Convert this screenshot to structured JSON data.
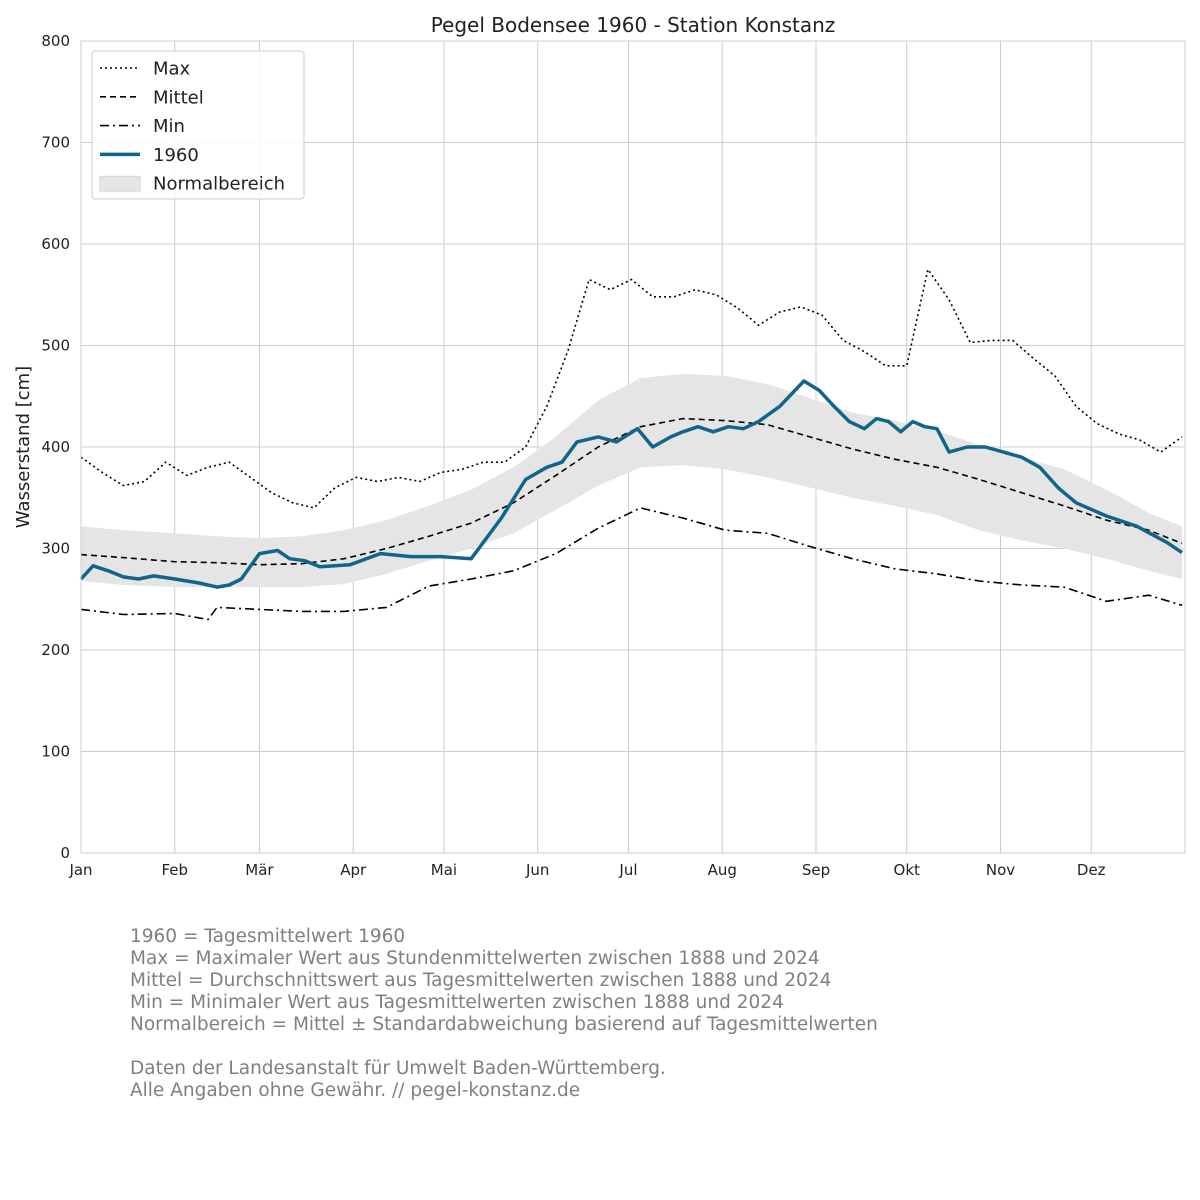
{
  "chart_data": {
    "type": "line",
    "title": "Pegel Bodensee 1960 - Station Konstanz",
    "xlabel": "",
    "ylabel": "Wasserstand [cm]",
    "ylim": [
      0,
      800
    ],
    "yticks": [
      0,
      100,
      200,
      300,
      400,
      500,
      600,
      700,
      800
    ],
    "months": [
      "Jan",
      "Feb",
      "Mär",
      "Apr",
      "Mai",
      "Jun",
      "Jul",
      "Aug",
      "Sep",
      "Okt",
      "Nov",
      "Dez"
    ],
    "grid": true,
    "legend_position": "top-left",
    "legend": [
      "Max",
      "Mittel",
      "Min",
      "1960",
      "Normalbereich"
    ],
    "colors": {
      "series_1960": "#12658a",
      "band": "#e5e5e5",
      "lines": "#000000",
      "grid": "#cccccc"
    },
    "series": [
      {
        "name": "Max",
        "style": "dotted",
        "x": [
          1,
          8,
          15,
          22,
          29,
          36,
          43,
          50,
          57,
          64,
          71,
          78,
          85,
          92,
          99,
          106,
          113,
          120,
          127,
          134,
          141,
          148,
          155,
          162,
          169,
          176,
          183,
          190,
          197,
          204,
          211,
          218,
          225,
          232,
          239,
          246,
          253,
          260,
          267,
          274,
          281,
          288,
          295,
          302,
          309,
          316,
          323,
          330,
          337,
          344,
          351,
          358,
          365
        ],
        "y": [
          390,
          375,
          362,
          366,
          385,
          372,
          380,
          385,
          370,
          355,
          345,
          340,
          360,
          370,
          366,
          370,
          366,
          375,
          378,
          385,
          385,
          400,
          440,
          495,
          565,
          555,
          565,
          548,
          548,
          555,
          550,
          537,
          520,
          533,
          538,
          530,
          505,
          494,
          480,
          480,
          575,
          545,
          503,
          505,
          505,
          487,
          470,
          440,
          423,
          413,
          407,
          395,
          410
        ]
      },
      {
        "name": "Mittel",
        "style": "dashed",
        "x": [
          1,
          15,
          32,
          46,
          60,
          74,
          88,
          102,
          116,
          130,
          144,
          158,
          172,
          186,
          200,
          214,
          228,
          242,
          256,
          270,
          284,
          298,
          312,
          326,
          340,
          354,
          365
        ],
        "y": [
          294,
          291,
          287,
          286,
          284,
          285,
          290,
          300,
          312,
          325,
          345,
          372,
          400,
          420,
          428,
          426,
          422,
          410,
          398,
          388,
          380,
          368,
          355,
          342,
          328,
          318,
          305
        ]
      },
      {
        "name": "Min",
        "style": "dashdot",
        "x": [
          1,
          15,
          32,
          43,
          46,
          60,
          74,
          88,
          102,
          116,
          130,
          144,
          158,
          172,
          186,
          197,
          200,
          214,
          228,
          242,
          256,
          270,
          284,
          298,
          312,
          326,
          340,
          354,
          365
        ],
        "y": [
          240,
          235,
          236,
          230,
          242,
          240,
          238,
          238,
          242,
          263,
          270,
          278,
          295,
          320,
          340,
          332,
          330,
          318,
          315,
          302,
          290,
          280,
          275,
          268,
          264,
          262,
          248,
          254,
          244
        ]
      },
      {
        "name": "1960",
        "style": "solid",
        "x": [
          1,
          5,
          10,
          15,
          20,
          25,
          32,
          40,
          46,
          50,
          54,
          60,
          66,
          70,
          75,
          80,
          90,
          100,
          110,
          120,
          130,
          140,
          148,
          155,
          160,
          165,
          172,
          178,
          185,
          190,
          196,
          200,
          205,
          210,
          215,
          220,
          225,
          232,
          240,
          245,
          250,
          255,
          260,
          264,
          268,
          272,
          276,
          280,
          284,
          288,
          294,
          300,
          306,
          312,
          318,
          324,
          330,
          340,
          350,
          360,
          365
        ],
        "y": [
          270,
          283,
          278,
          272,
          270,
          273,
          270,
          266,
          262,
          264,
          270,
          295,
          298,
          290,
          288,
          282,
          284,
          295,
          292,
          292,
          290,
          330,
          368,
          380,
          385,
          405,
          410,
          405,
          418,
          400,
          410,
          415,
          420,
          415,
          420,
          418,
          425,
          440,
          465,
          456,
          440,
          425,
          418,
          428,
          425,
          415,
          425,
          420,
          418,
          395,
          400,
          400,
          395,
          390,
          380,
          360,
          345,
          332,
          322,
          306,
          296
        ]
      },
      {
        "name": "Normalbereich",
        "style": "band",
        "x": [
          1,
          15,
          32,
          46,
          60,
          74,
          88,
          102,
          116,
          130,
          144,
          158,
          172,
          186,
          200,
          214,
          228,
          242,
          256,
          270,
          284,
          298,
          312,
          326,
          340,
          354,
          365
        ],
        "upper": [
          322,
          318,
          315,
          312,
          310,
          312,
          318,
          328,
          342,
          358,
          380,
          410,
          446,
          468,
          472,
          470,
          462,
          448,
          434,
          426,
          416,
          402,
          390,
          378,
          358,
          335,
          322
        ],
        "lower": [
          268,
          264,
          262,
          262,
          262,
          262,
          265,
          275,
          288,
          300,
          315,
          338,
          362,
          380,
          382,
          378,
          370,
          360,
          350,
          342,
          333,
          318,
          308,
          300,
          290,
          278,
          270
        ]
      }
    ]
  },
  "notes": [
    "1960 = Tagesmittelwert 1960",
    "Max = Maximaler Wert aus Stundenmittelwerten zwischen 1888 und 2024",
    "Mittel = Durchschnittswert aus Tagesmittelwerten zwischen 1888 und 2024",
    "Min = Minimaler Wert aus Tagesmittelwerten zwischen 1888 und 2024",
    "Normalbereich = Mittel ± Standardabweichung basierend auf Tagesmittelwerten"
  ],
  "source": [
    "Daten der Landesanstalt für Umwelt Baden-Württemberg.",
    "Alle Angaben ohne Gewähr. // pegel-konstanz.de"
  ]
}
